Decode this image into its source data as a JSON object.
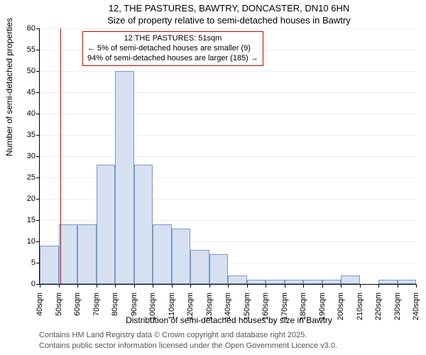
{
  "title_main": "12, THE PASTURES, BAWTRY, DONCASTER, DN10 6HN",
  "title_sub": "Size of property relative to semi-detached houses in Bawtry",
  "y_label": "Number of semi-detached properties",
  "x_label": "Distribution of semi-detached houses by size in Bawtry",
  "footer_1": "Contains HM Land Registry data © Crown copyright and database right 2025.",
  "footer_2": "Contains public sector information licensed under the Open Government Licence v3.0.",
  "chart": {
    "type": "histogram",
    "background_color": "#ffffff",
    "grid_color": "#eeeeee",
    "bar_fill": "#d6e0f0",
    "bar_stroke": "#7a99c7",
    "marker_color": "#cc0000",
    "ylim": [
      0,
      60
    ],
    "ytick_step": 5,
    "x_start": 40,
    "x_step": 10,
    "x_count": 21,
    "x_unit": "sqm",
    "bars": [
      9,
      14,
      14,
      28,
      50,
      28,
      14,
      13,
      8,
      7,
      2,
      1,
      1,
      1,
      1,
      1,
      2,
      0,
      1,
      1
    ],
    "marker_x": 51,
    "annotation": {
      "line1": "12 THE PASTURES: 51sqm",
      "line2": "← 5% of semi-detached houses are smaller (9)",
      "line3": "94% of semi-detached houses are larger (185) →"
    },
    "title_fontsize": 13,
    "label_fontsize": 12,
    "tick_fontsize": 11,
    "footer_fontsize": 11
  }
}
